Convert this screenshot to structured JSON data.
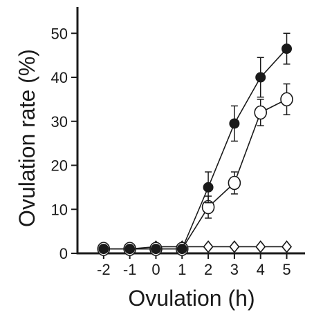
{
  "chart_data": {
    "type": "line",
    "title": "",
    "xlabel": "Ovulation (h)",
    "ylabel": "Ovulation rate (%)",
    "x": [
      -2,
      -1,
      0,
      1,
      2,
      3,
      4,
      5
    ],
    "xlim": [
      -3,
      5.7
    ],
    "ylim": [
      0,
      56
    ],
    "xticks": [
      "-2",
      "-1",
      "0",
      "1",
      "2",
      "3",
      "4",
      "5"
    ],
    "yticks": [
      "0",
      "10",
      "20",
      "30",
      "40",
      "50"
    ],
    "grid": false,
    "legend": "none",
    "series": [
      {
        "marker": "filled-circle",
        "color": "#1a1a1a",
        "values": [
          1,
          1,
          1,
          1,
          15,
          29.5,
          40,
          46.5
        ],
        "error": [
          0,
          0,
          0,
          0,
          3.5,
          4,
          4.5,
          3.5
        ]
      },
      {
        "marker": "open-circle",
        "color": "#1a1a1a",
        "values": [
          1,
          1,
          1,
          1,
          10.5,
          16,
          32,
          35
        ],
        "error": [
          0,
          0,
          0,
          0,
          2.5,
          2.5,
          3,
          3.5
        ]
      },
      {
        "marker": "open-diamond",
        "color": "#1a1a1a",
        "values": [
          1,
          1,
          1.5,
          1.5,
          1.5,
          1.5,
          1.5,
          1.5
        ],
        "error": [
          0,
          0,
          0,
          0,
          0,
          0,
          0,
          0
        ]
      }
    ]
  }
}
